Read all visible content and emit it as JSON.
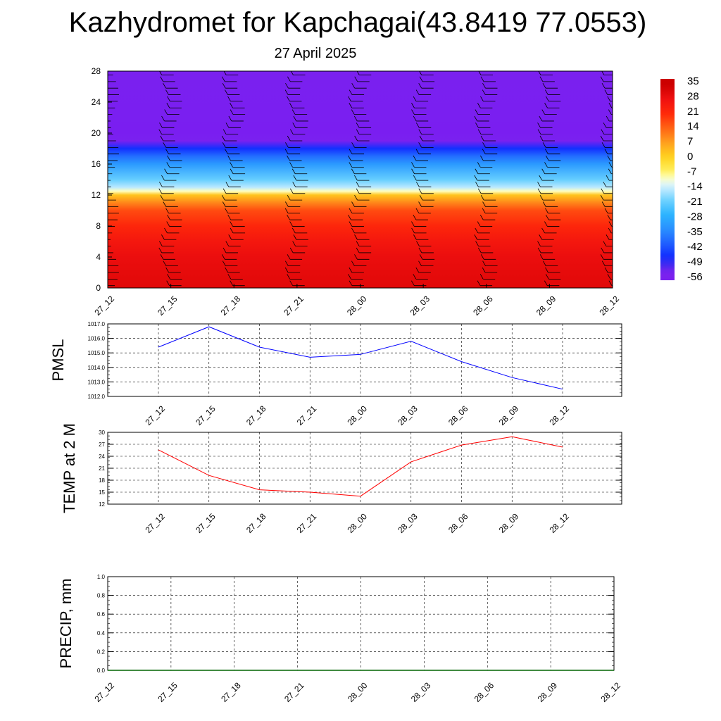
{
  "title": "Kazhydromet for Kapchagai(43.8419 77.0553)",
  "subtitle": "27 April 2025",
  "time_labels": [
    "27_12",
    "27_15",
    "27_18",
    "27_21",
    "28_00",
    "28_03",
    "28_06",
    "28_09",
    "28_12"
  ],
  "colorbar": {
    "labels": [
      "35",
      "28",
      "21",
      "14",
      "7",
      "0",
      "-7",
      "-14",
      "-21",
      "-28",
      "-35",
      "-42",
      "-49",
      "-56"
    ]
  },
  "chart_data": [
    {
      "type": "heatmap",
      "title": "",
      "ylabel": "",
      "yticks": [
        0,
        4,
        8,
        12,
        16,
        20,
        24,
        28
      ],
      "ylim": [
        0,
        28
      ],
      "categories": [
        "27_12",
        "27_15",
        "27_18",
        "27_21",
        "28_00",
        "28_03",
        "28_06",
        "28_09",
        "28_12"
      ],
      "levels": [
        0,
        2,
        4,
        6,
        8,
        10,
        11,
        12,
        12.5,
        13,
        14,
        16,
        17,
        18,
        19,
        20,
        22,
        28
      ],
      "temperature_by_level": [
        31,
        30,
        29,
        26,
        22,
        17,
        10,
        2,
        -10,
        -16,
        -22,
        -33,
        -40,
        -48,
        -58,
        -64,
        -62,
        -60
      ],
      "colorbar_range": [
        -56,
        35
      ],
      "wind_barbs": "shown at each time step"
    },
    {
      "type": "line",
      "ylabel": "PMSL",
      "categories": [
        "27_12",
        "27_15",
        "27_18",
        "27_21",
        "28_00",
        "28_03",
        "28_06",
        "28_09",
        "28_12"
      ],
      "series": [
        {
          "values": [
            1015.4,
            1016.8,
            1015.4,
            1014.7,
            1014.9,
            1015.8,
            1014.4,
            1013.3,
            1012.5
          ],
          "color": "#0000ff"
        }
      ],
      "yticks": [
        "1012.0",
        "1013.0",
        "1014.0",
        "1015.0",
        "1016.0",
        "1017.0"
      ],
      "ylim": [
        1012,
        1017
      ],
      "grid": true
    },
    {
      "type": "line",
      "ylabel": "TEMP at 2 M",
      "categories": [
        "27_12",
        "27_15",
        "27_18",
        "27_21",
        "28_00",
        "28_03",
        "28_06",
        "28_09",
        "28_12"
      ],
      "series": [
        {
          "values": [
            25.6,
            19.2,
            15.6,
            15.0,
            14.0,
            22.6,
            26.8,
            28.9,
            26.3
          ],
          "color": "#ff0000"
        }
      ],
      "yticks": [
        "12",
        "15",
        "18",
        "21",
        "24",
        "27",
        "30"
      ],
      "ylim": [
        12,
        30
      ],
      "grid": true
    },
    {
      "type": "line",
      "ylabel": "PRECIP, mm",
      "categories": [
        "27_12",
        "27_15",
        "27_18",
        "27_21",
        "28_00",
        "28_03",
        "28_06",
        "28_09",
        "28_12"
      ],
      "series": [
        {
          "values": [
            0,
            0,
            0,
            0,
            0,
            0,
            0,
            0,
            0
          ],
          "color": "#006400"
        }
      ],
      "yticks": [
        "0.0",
        "0.2",
        "0.4",
        "0.6",
        "0.8",
        "1.0"
      ],
      "ylim": [
        0,
        1
      ],
      "grid": true
    }
  ]
}
